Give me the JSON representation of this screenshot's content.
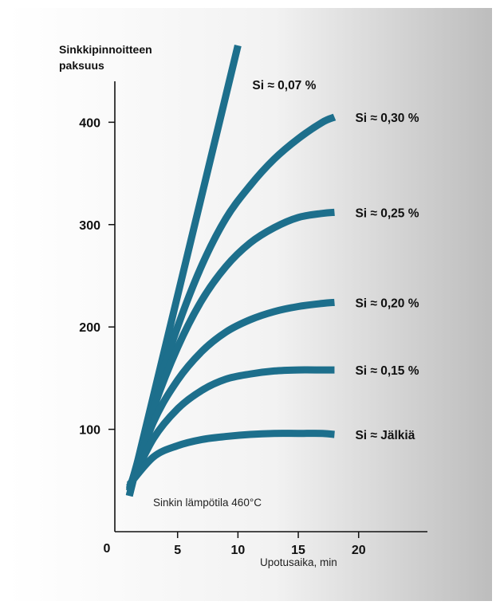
{
  "chart_data": {
    "type": "line",
    "ylabel_lines": [
      "Sinkkipinnoitteen",
      "paksuus"
    ],
    "xlabel": "Upotusaika, min",
    "annotation": "Sinkin lämpötila 460°C",
    "origin_label": "0",
    "x_ticks": [
      5,
      10,
      15,
      20
    ],
    "y_ticks": [
      100,
      200,
      300,
      400
    ],
    "xlim": [
      -0.2,
      25.7
    ],
    "ylim": [
      0,
      440
    ],
    "series": [
      {
        "name": "Si ≈ 0,07 %",
        "points": [
          [
            1,
            35
          ],
          [
            10,
            475
          ]
        ]
      },
      {
        "name": "Si ≈ 0,30 %",
        "points": [
          [
            1,
            35
          ],
          [
            3,
            127
          ],
          [
            5,
            200
          ],
          [
            7,
            260
          ],
          [
            9,
            306
          ],
          [
            11,
            338
          ],
          [
            13,
            364
          ],
          [
            15,
            384
          ],
          [
            17,
            400
          ],
          [
            18,
            405
          ]
        ]
      },
      {
        "name": "Si ≈ 0,25 %",
        "points": [
          [
            1,
            40
          ],
          [
            3,
            120
          ],
          [
            5,
            180
          ],
          [
            7,
            226
          ],
          [
            9,
            259
          ],
          [
            11,
            282
          ],
          [
            13,
            297
          ],
          [
            15,
            307
          ],
          [
            17,
            311
          ],
          [
            18,
            312
          ]
        ]
      },
      {
        "name": "Si ≈ 0,20 %",
        "points": [
          [
            1,
            42
          ],
          [
            3,
            107
          ],
          [
            5,
            148
          ],
          [
            7,
            176
          ],
          [
            9,
            195
          ],
          [
            11,
            207
          ],
          [
            13,
            215
          ],
          [
            15,
            220
          ],
          [
            17,
            223
          ],
          [
            18,
            224
          ]
        ]
      },
      {
        "name": "Si ≈ 0,15 %",
        "points": [
          [
            1,
            44
          ],
          [
            3,
            91
          ],
          [
            5,
            120
          ],
          [
            7,
            138
          ],
          [
            9,
            149
          ],
          [
            11,
            154
          ],
          [
            13,
            157
          ],
          [
            15,
            158
          ],
          [
            17,
            158
          ],
          [
            18,
            158
          ]
        ]
      },
      {
        "name": "Si ≈ Jälkiä",
        "points": [
          [
            1,
            46
          ],
          [
            3,
            73
          ],
          [
            5,
            84
          ],
          [
            7,
            90
          ],
          [
            9,
            93
          ],
          [
            11,
            95
          ],
          [
            13,
            96
          ],
          [
            15,
            96
          ],
          [
            17,
            96
          ],
          [
            18,
            95
          ]
        ]
      }
    ],
    "line_color": "#1d6f8c",
    "background_gradient": [
      "#ffffff",
      "#bdbdbd"
    ],
    "grid": false,
    "legend": "labels at line ends"
  }
}
